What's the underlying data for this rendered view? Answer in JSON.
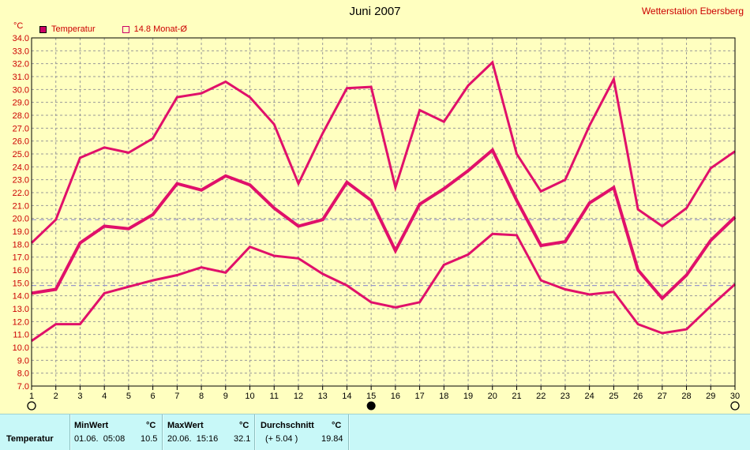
{
  "header": {
    "title": "Juni 2007",
    "station": "Wetterstation Ebersberg",
    "unit": "°C"
  },
  "legend": {
    "series_label": "Temperatur",
    "avg_label": "14.8 Monat-Ø"
  },
  "colors": {
    "series": "#e0106a",
    "background": "#ffffc0",
    "grid": "#999999",
    "reference_line": "#9999cc",
    "axis_text": "#cc0000"
  },
  "chart_data": {
    "type": "line",
    "title": "Juni 2007",
    "xlabel": "",
    "ylabel": "°C",
    "x": [
      1,
      2,
      3,
      4,
      5,
      6,
      7,
      8,
      9,
      10,
      11,
      12,
      13,
      14,
      15,
      16,
      17,
      18,
      19,
      20,
      21,
      22,
      23,
      24,
      25,
      26,
      27,
      28,
      29,
      30
    ],
    "xlim": [
      1,
      30
    ],
    "ylim": [
      7.0,
      34.0
    ],
    "ytick_step": 1.0,
    "grid": true,
    "legend_position": "top-left",
    "series": [
      {
        "name": "max",
        "values": [
          18.1,
          19.9,
          24.7,
          25.5,
          25.1,
          26.2,
          29.4,
          29.7,
          30.6,
          29.4,
          27.3,
          22.7,
          26.6,
          30.1,
          30.2,
          22.4,
          28.4,
          27.5,
          30.3,
          32.1,
          25.0,
          22.1,
          23.0,
          27.2,
          30.8,
          20.7,
          19.4,
          20.8,
          23.9,
          25.2
        ]
      },
      {
        "name": "mean",
        "values": [
          14.2,
          14.5,
          18.1,
          19.4,
          19.2,
          20.3,
          22.7,
          22.2,
          23.3,
          22.6,
          20.8,
          19.4,
          19.9,
          22.8,
          21.4,
          17.5,
          21.1,
          22.3,
          23.7,
          25.3,
          21.4,
          17.9,
          18.2,
          21.2,
          22.4,
          16.0,
          13.8,
          15.6,
          18.3,
          20.1
        ]
      },
      {
        "name": "min",
        "values": [
          10.5,
          11.8,
          11.8,
          14.2,
          14.7,
          15.2,
          15.6,
          16.2,
          15.8,
          17.8,
          17.1,
          16.9,
          15.7,
          14.8,
          13.5,
          13.1,
          13.5,
          16.4,
          17.2,
          18.8,
          18.7,
          15.2,
          14.5,
          14.1,
          14.3,
          11.8,
          11.1,
          11.4,
          13.2,
          14.9
        ]
      }
    ],
    "reference_lines": [
      {
        "value": 14.8
      },
      {
        "value": 19.9
      }
    ],
    "moon_phases": [
      {
        "day": 1,
        "phase": "full"
      },
      {
        "day": 15,
        "phase": "new"
      },
      {
        "day": 30,
        "phase": "full"
      }
    ]
  },
  "stats": {
    "row_label": "Temperatur",
    "min": {
      "header": "MinWert",
      "unit": "°C",
      "when": "01.06.  05:08",
      "value": "10.5"
    },
    "max": {
      "header": "MaxWert",
      "unit": "°C",
      "when": "20.06.  15:16",
      "value": "32.1"
    },
    "avg": {
      "header": "Durchschnitt",
      "unit": "°C",
      "deviation": "(+ 5.04 )",
      "value": "19.84"
    }
  }
}
